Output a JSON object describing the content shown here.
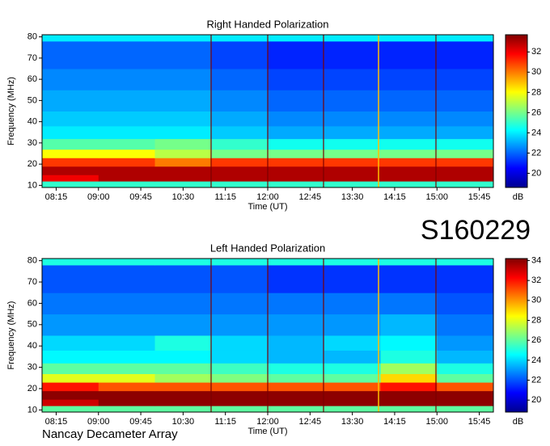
{
  "chart_data": [
    {
      "type": "heatmap",
      "title": "Right Handed Polarization",
      "x_label": "Time (UT)",
      "y_label": "Frequency (MHz)",
      "colorbar_label": "dB",
      "xlim": [
        480,
        960
      ],
      "ylim": [
        9,
        81
      ],
      "xticks": [
        {
          "value": 495,
          "label": "08:15"
        },
        {
          "value": 540,
          "label": "09:00"
        },
        {
          "value": 585,
          "label": "09:45"
        },
        {
          "value": 630,
          "label": "10:30"
        },
        {
          "value": 675,
          "label": "11:15"
        },
        {
          "value": 720,
          "label": "12:00"
        },
        {
          "value": 765,
          "label": "12:45"
        },
        {
          "value": 810,
          "label": "13:30"
        },
        {
          "value": 855,
          "label": "14:15"
        },
        {
          "value": 900,
          "label": "15:00"
        },
        {
          "value": 945,
          "label": "15:45"
        }
      ],
      "yticks": [
        10,
        20,
        30,
        40,
        50,
        60,
        70,
        80
      ],
      "x_bins": [
        480,
        540,
        600,
        660,
        720,
        780,
        840,
        900,
        960
      ],
      "y_bins": [
        9,
        12,
        15,
        19,
        23,
        27,
        32,
        38,
        45,
        55,
        65,
        78,
        81
      ],
      "z": [
        [
          25,
          25,
          25,
          25,
          25,
          25,
          25,
          25
        ],
        [
          32,
          33,
          33,
          33,
          33,
          33,
          33,
          33
        ],
        [
          33,
          33,
          33,
          33,
          33,
          33,
          33,
          33
        ],
        [
          31,
          31,
          30,
          31,
          31,
          31,
          31,
          31
        ],
        [
          28,
          28,
          27,
          26,
          26,
          26,
          26,
          26
        ],
        [
          25.5,
          25.5,
          26,
          25,
          24.5,
          24.5,
          24.5,
          24.5
        ],
        [
          24,
          24,
          24,
          23.5,
          23,
          23,
          23,
          23
        ],
        [
          23.5,
          23.5,
          23.5,
          23,
          22.5,
          22.5,
          22.5,
          22.5
        ],
        [
          23,
          23,
          23,
          22.5,
          22,
          22,
          22,
          22
        ],
        [
          22.5,
          22.5,
          22.5,
          22,
          21.5,
          21.5,
          21.5,
          21.5
        ],
        [
          22,
          22,
          22,
          21.5,
          21,
          21,
          21,
          21
        ],
        [
          24,
          24,
          24,
          24,
          24,
          24,
          24,
          24
        ]
      ],
      "clim": [
        18.6,
        33.7
      ],
      "cticks": [
        20,
        22,
        24,
        26,
        28,
        30,
        32
      ]
    },
    {
      "type": "heatmap",
      "title": "Left Handed Polarization",
      "x_label": "Time (UT)",
      "y_label": "Frequency (MHz)",
      "colorbar_label": "dB",
      "xlim": [
        480,
        960
      ],
      "ylim": [
        9,
        81
      ],
      "xticks": [
        {
          "value": 495,
          "label": "08:15"
        },
        {
          "value": 540,
          "label": "09:00"
        },
        {
          "value": 585,
          "label": "09:45"
        },
        {
          "value": 630,
          "label": "10:30"
        },
        {
          "value": 675,
          "label": "11:15"
        },
        {
          "value": 720,
          "label": "12:00"
        },
        {
          "value": 765,
          "label": "12:45"
        },
        {
          "value": 810,
          "label": "13:30"
        },
        {
          "value": 855,
          "label": "14:15"
        },
        {
          "value": 900,
          "label": "15:00"
        },
        {
          "value": 945,
          "label": "15:45"
        }
      ],
      "yticks": [
        10,
        20,
        30,
        40,
        50,
        60,
        70,
        80
      ],
      "x_bins": [
        480,
        540,
        600,
        660,
        720,
        780,
        840,
        900,
        960
      ],
      "y_bins": [
        9,
        12,
        15,
        19,
        23,
        27,
        32,
        38,
        45,
        55,
        65,
        78,
        81
      ],
      "z": [
        [
          26,
          26,
          26,
          26,
          26,
          26,
          26,
          26
        ],
        [
          33,
          34,
          34,
          34,
          34,
          34,
          34,
          34
        ],
        [
          34,
          34,
          34,
          34,
          34,
          34,
          34,
          34
        ],
        [
          32,
          31,
          31,
          31,
          31,
          31,
          32,
          31
        ],
        [
          28,
          28,
          27,
          26.5,
          26,
          26,
          29,
          26
        ],
        [
          26,
          26,
          26,
          25.5,
          25,
          25,
          27,
          25
        ],
        [
          24.5,
          24.5,
          24.5,
          24,
          23.5,
          23.5,
          25,
          23.5
        ],
        [
          24,
          24,
          25,
          24,
          23.5,
          24,
          24.5,
          23
        ],
        [
          23,
          23,
          23,
          23,
          23,
          23,
          23.5,
          22.5
        ],
        [
          22.5,
          22.5,
          22.5,
          22.5,
          22.5,
          22.5,
          22.5,
          22
        ],
        [
          22,
          22,
          22,
          22,
          21.5,
          21.5,
          21.5,
          21.5
        ],
        [
          25,
          25,
          25,
          25,
          25,
          25,
          25,
          25
        ]
      ],
      "clim": [
        18.8,
        34.2
      ],
      "cticks": [
        20,
        22,
        24,
        26,
        28,
        30,
        32,
        34
      ]
    }
  ],
  "date_label": "S160229",
  "footer": "Nancay Decameter Array"
}
